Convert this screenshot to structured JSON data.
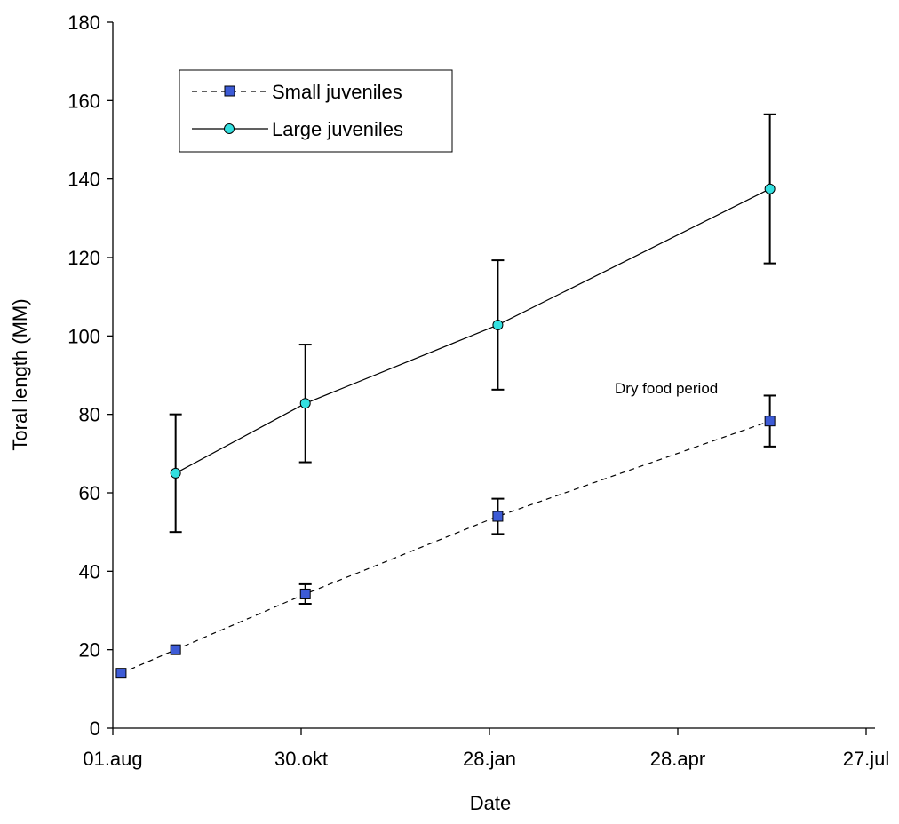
{
  "chart_data": {
    "type": "line",
    "title": "",
    "xlabel": "Date",
    "ylabel": "Toral length (MM)",
    "x_ticks": [
      "01.aug",
      "30.okt",
      "28.jan",
      "28.apr",
      "27.jul"
    ],
    "x_tick_dates": [
      "2000-08-01",
      "2000-10-30",
      "2001-01-28",
      "2001-04-28",
      "2001-07-27"
    ],
    "xlim": [
      "2000-08-01",
      "2001-07-27"
    ],
    "y_ticks": [
      0,
      20,
      40,
      60,
      80,
      100,
      120,
      140,
      160,
      180
    ],
    "ylim": [
      0,
      180
    ],
    "grid": false,
    "legend": "top-left",
    "annotation": "Dry food period",
    "series": [
      {
        "name": "Small juveniles",
        "line_style": "dashed",
        "marker": "square",
        "marker_color": "#3d5bd6",
        "points": [
          {
            "x": "2000-08-05",
            "y": 14,
            "err": null
          },
          {
            "x": "2000-08-31",
            "y": 20,
            "err": null
          },
          {
            "x": "2000-11-01",
            "y": 34.2,
            "err": 2.5
          },
          {
            "x": "2001-02-01",
            "y": 54,
            "err": 4.5
          },
          {
            "x": "2001-06-11",
            "y": 78.3,
            "err": 6.5
          }
        ]
      },
      {
        "name": "Large juveniles",
        "line_style": "solid",
        "marker": "circle",
        "marker_color": "#33e0e0",
        "points": [
          {
            "x": "2000-08-31",
            "y": 65,
            "err": 15
          },
          {
            "x": "2000-11-01",
            "y": 82.8,
            "err": 15
          },
          {
            "x": "2001-02-01",
            "y": 102.8,
            "err": 16.5
          },
          {
            "x": "2001-06-11",
            "y": 137.5,
            "err": 19
          }
        ]
      }
    ]
  }
}
